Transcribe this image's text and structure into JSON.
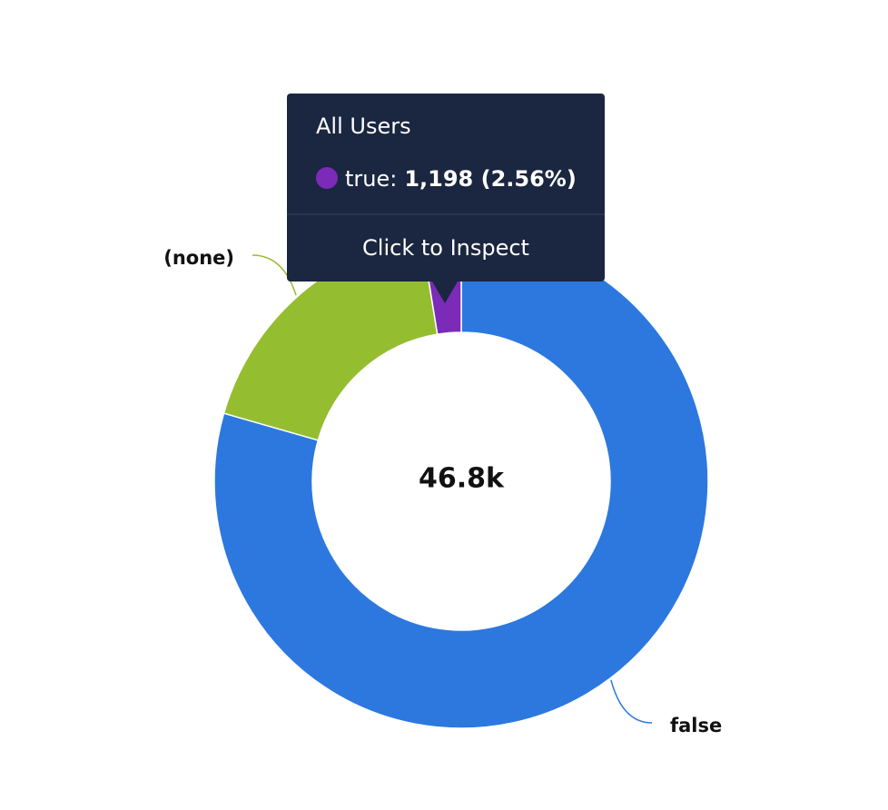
{
  "chart_data": {
    "type": "donut",
    "categories": [
      "false",
      "(none)",
      "true"
    ],
    "series": [
      {
        "name": "All Users",
        "colors": [
          "#2c78df",
          "#95bd30",
          "#7b2bb8"
        ],
        "values": [
          37178,
          8424,
          1198
        ]
      }
    ],
    "center_label": "46.8k",
    "tooltip": {
      "title": "All Users",
      "label": "true:",
      "value_text": "1,198 (2.56%)",
      "action": "Click to Inspect"
    }
  }
}
